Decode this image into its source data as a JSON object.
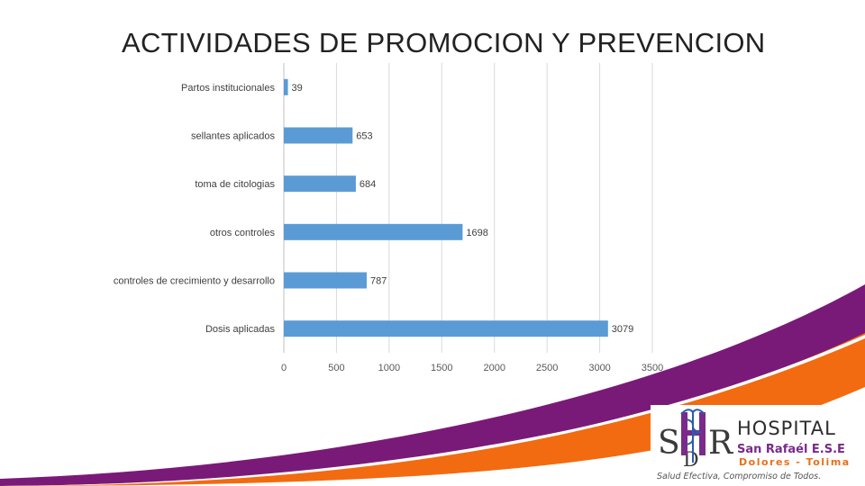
{
  "slide": {
    "title": "ACTIVIDADES DE PROMOCION Y PREVENCION"
  },
  "chart_data": {
    "type": "bar",
    "orientation": "horizontal",
    "title": "ACTIVIDADES DE PROMOCION Y PREVENCION",
    "categories": [
      "Partos institucionales",
      "sellantes aplicados",
      "toma de citologias",
      "otros controles",
      "controles de crecimiento y desarrollo",
      "Dosis aplicadas"
    ],
    "values": [
      39,
      653,
      684,
      1698,
      787,
      3079
    ],
    "xlim": [
      0,
      3500
    ],
    "xticks": [
      0,
      500,
      1000,
      1500,
      2000,
      2500,
      3000,
      3500
    ],
    "xlabel": "",
    "ylabel": "",
    "grid": true,
    "legend": "none",
    "bar_color": "#5b9bd5"
  },
  "logo": {
    "hospital": "HOSPITAL",
    "name": "San Rafaél E.S.E",
    "place": "Dolores - Tolima",
    "slogan": "Salud Efectiva, Compromiso de Todos."
  },
  "colors": {
    "bar": "#5b9bd5",
    "band_purple": "#7a1a78",
    "band_orange": "#f26b10"
  }
}
